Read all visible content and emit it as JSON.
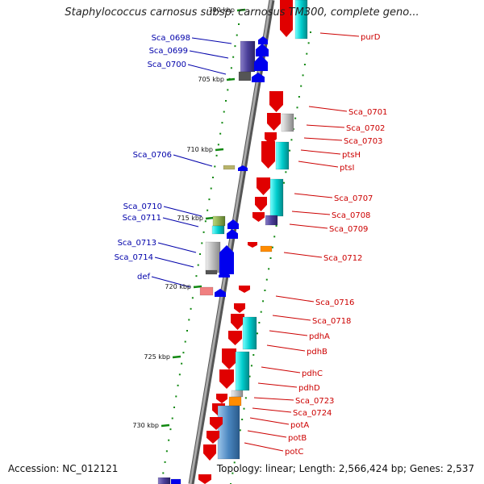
{
  "title": "Staphylococcus carnosus subsp. carnosus TM300, complete geno...",
  "accession": "Accession: NC_012121",
  "stats": "Topology: linear; Length: 2,566,424 bp; Genes: 2,537",
  "kbp_ticks": [
    {
      "text": "700 kbp"
    },
    {
      "text": "705 kbp"
    },
    {
      "text": "710 kbp"
    },
    {
      "text": "715 kbp"
    },
    {
      "text": "720 kbp"
    },
    {
      "text": "725 kbp"
    },
    {
      "text": "730 kbp"
    }
  ],
  "colors": {
    "forward_strand": "#e00000",
    "reverse_strand": "#0000ee",
    "forward_label": "#cc0000",
    "reverse_label": "#0000aa",
    "backbone": "#888888",
    "tick": "#118811"
  },
  "genes_left": [
    "Sca_0698",
    "Sca_0699",
    "Sca_0700",
    "Sca_0706",
    "Sca_0710",
    "Sca_0711",
    "Sca_0713",
    "Sca_0714",
    "def"
  ],
  "genes_right": [
    "purD",
    "Sca_0701",
    "Sca_0702",
    "Sca_0703",
    "ptsH",
    "ptsI",
    "Sca_0707",
    "Sca_0708",
    "Sca_0709",
    "Sca_0712",
    "Sca_0716",
    "Sca_0718",
    "pdhA",
    "pdhB",
    "pdhC",
    "pdhD",
    "Sca_0723",
    "Sca_0724",
    "potA",
    "potB",
    "potC"
  ]
}
